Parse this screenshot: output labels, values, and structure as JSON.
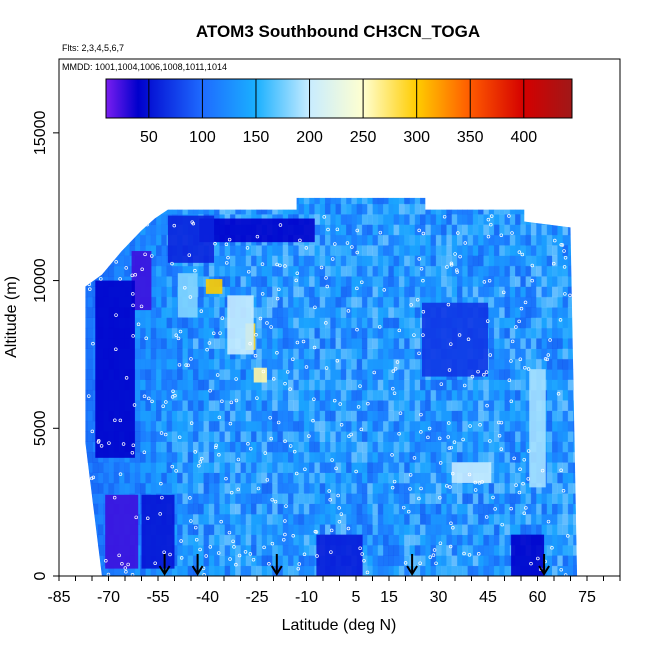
{
  "chart_data": {
    "type": "heatmap",
    "title": "ATOM3 Southbound CH3CN_TOGA",
    "flights_label": "Flts: 2,3,4,5,6,7",
    "dates_label": "MMDD: 1001,1004,1006,1008,1011,1014",
    "xlabel": "Latitude (deg N)",
    "ylabel": "Altitude (m)",
    "xlim": [
      -85,
      85
    ],
    "ylim": [
      0,
      17500
    ],
    "xticks": [
      -85,
      -70,
      -55,
      -40,
      -25,
      -10,
      5,
      15,
      30,
      45,
      60,
      75
    ],
    "xtick_labels": [
      "-85",
      "-70",
      "-55",
      "-40",
      "-25",
      "-10",
      "5",
      "15",
      "30",
      "45",
      "60",
      "75"
    ],
    "yticks": [
      0,
      5000,
      10000,
      15000
    ],
    "ytick_labels": [
      "0",
      "5000",
      "10000",
      "15000"
    ],
    "colorbar": {
      "range": [
        10,
        445
      ],
      "ticks": [
        50,
        100,
        150,
        200,
        250,
        300,
        350,
        400
      ],
      "tick_labels": [
        "50",
        "100",
        "150",
        "200",
        "250",
        "300",
        "350",
        "400"
      ],
      "stops": [
        {
          "v": 10,
          "c": "#7a1ef0"
        },
        {
          "v": 40,
          "c": "#0000cc"
        },
        {
          "v": 100,
          "c": "#1e6bff"
        },
        {
          "v": 150,
          "c": "#1ab0ff"
        },
        {
          "v": 200,
          "c": "#c8ecff"
        },
        {
          "v": 250,
          "c": "#ffffd0"
        },
        {
          "v": 300,
          "c": "#ffcc00"
        },
        {
          "v": 350,
          "c": "#ff5a00"
        },
        {
          "v": 400,
          "c": "#d40000"
        },
        {
          "v": 445,
          "c": "#a01818"
        }
      ]
    },
    "arrow_latitudes": [
      -53,
      -43,
      -19,
      22,
      62
    ],
    "coverage_top": [
      {
        "lat": -77,
        "alt": 9800
      },
      {
        "lat": -72,
        "alt": 10200
      },
      {
        "lat": -66,
        "alt": 11000
      },
      {
        "lat": -60,
        "alt": 11700
      },
      {
        "lat": -56,
        "alt": 12100
      },
      {
        "lat": -52,
        "alt": 12400
      },
      {
        "lat": -13,
        "alt": 12400
      },
      {
        "lat": -13,
        "alt": 12800
      },
      {
        "lat": 26,
        "alt": 12800
      },
      {
        "lat": 26,
        "alt": 12400
      },
      {
        "lat": 56,
        "alt": 12400
      },
      {
        "lat": 56,
        "alt": 12000
      },
      {
        "lat": 70,
        "alt": 11800
      }
    ],
    "coverage_bottom": [
      {
        "lat": -77,
        "alt": 4500
      },
      {
        "lat": -72,
        "alt": 0
      },
      {
        "lat": 72,
        "alt": 0
      }
    ],
    "background_value": 130,
    "anomalies": [
      {
        "lat": -38,
        "alt": 9800,
        "value": 300,
        "w": 5,
        "h": 500
      },
      {
        "lat": -27,
        "alt": 8100,
        "value": 290,
        "w": 3,
        "h": 900
      },
      {
        "lat": -24,
        "alt": 6800,
        "value": 260,
        "w": 4,
        "h": 500
      },
      {
        "lat": -30,
        "alt": 8500,
        "value": 200,
        "w": 8,
        "h": 2000
      },
      {
        "lat": -46,
        "alt": 9500,
        "value": 180,
        "w": 6,
        "h": 1500
      },
      {
        "lat": -25,
        "alt": 11700,
        "value": 40,
        "w": 35,
        "h": 800
      },
      {
        "lat": -45,
        "alt": 11400,
        "value": 60,
        "w": 14,
        "h": 1600
      },
      {
        "lat": -60,
        "alt": 10000,
        "value": 25,
        "w": 6,
        "h": 2000
      },
      {
        "lat": -68,
        "alt": 7000,
        "value": 40,
        "w": 12,
        "h": 6000
      },
      {
        "lat": -66,
        "alt": 1500,
        "value": 25,
        "w": 10,
        "h": 2500
      },
      {
        "lat": -55,
        "alt": 1500,
        "value": 50,
        "w": 10,
        "h": 2500
      },
      {
        "lat": 0,
        "alt": 700,
        "value": 55,
        "w": 14,
        "h": 1400
      },
      {
        "lat": 57,
        "alt": 700,
        "value": 40,
        "w": 10,
        "h": 1400
      },
      {
        "lat": 60,
        "alt": 5000,
        "value": 190,
        "w": 5,
        "h": 4000
      },
      {
        "lat": 35,
        "alt": 8000,
        "value": 70,
        "w": 20,
        "h": 2500
      },
      {
        "lat": 40,
        "alt": 3500,
        "value": 200,
        "w": 12,
        "h": 700
      }
    ]
  }
}
